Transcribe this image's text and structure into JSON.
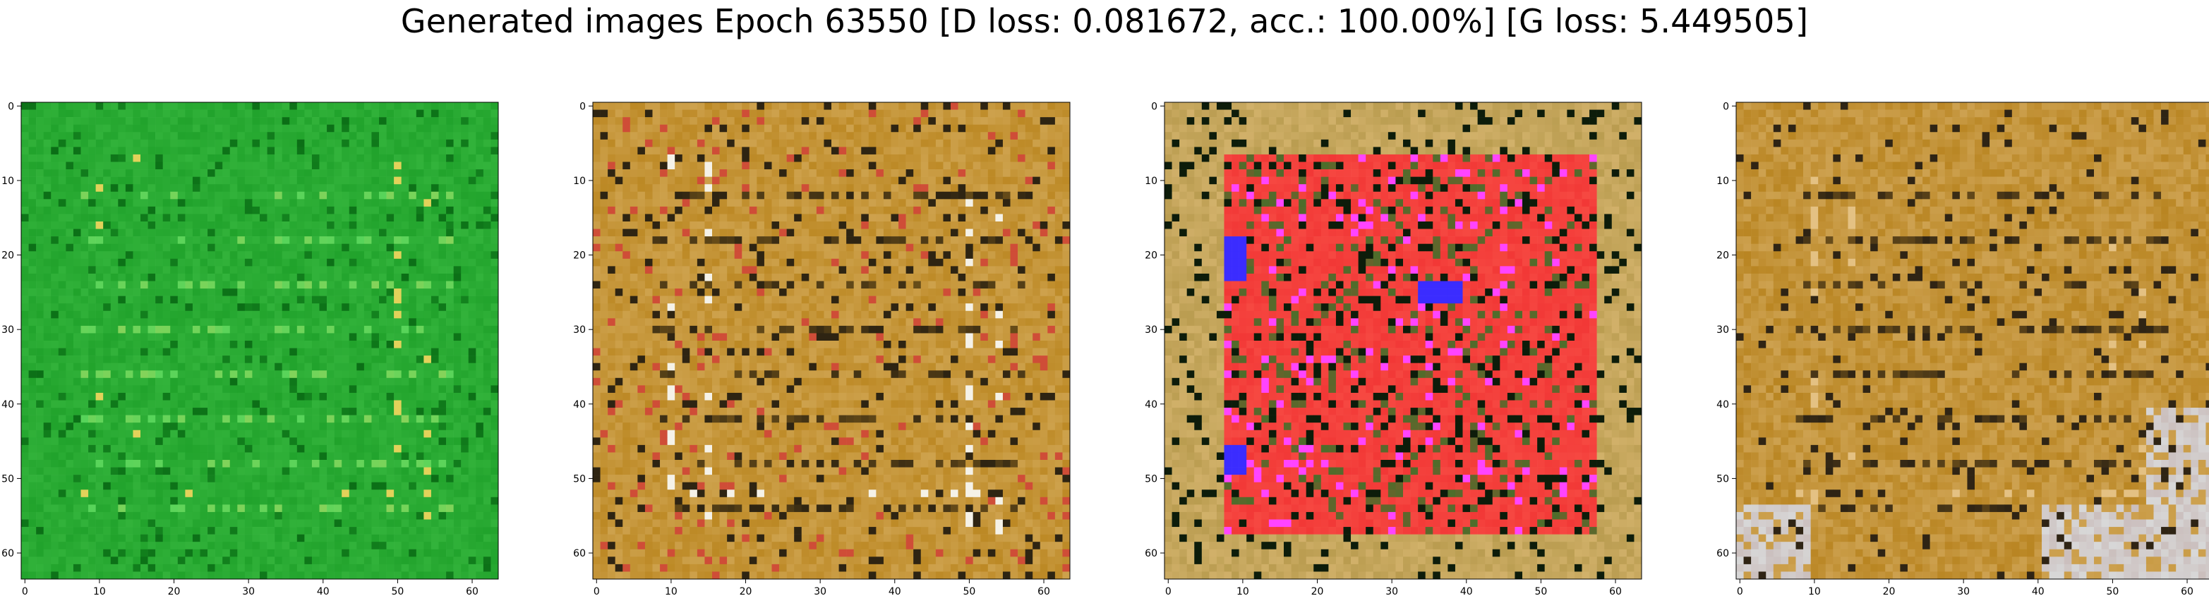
{
  "figure": {
    "title": "Generated images Epoch 63550 [D loss: 0.081672, acc.: 100.00%] [G loss: 5.449505]"
  },
  "axes_ticks": {
    "x": [
      "0",
      "10",
      "20",
      "30",
      "40",
      "50",
      "60"
    ],
    "y": [
      "0",
      "10",
      "20",
      "30",
      "40",
      "50",
      "60"
    ]
  },
  "panels": [
    {
      "id": "panel-1",
      "colors": {
        "base": "#1fa12a",
        "dark": "#0b6e16",
        "light": "#56d45a",
        "accent": "#e2d25a",
        "spot": "#f0a22b"
      }
    },
    {
      "id": "panel-2",
      "colors": {
        "base": "#bb8722",
        "dark": "#2e2412",
        "light": "#e3c07d",
        "accent": "#f5f2e8",
        "spot": "#cf4d37"
      }
    },
    {
      "id": "panel-3",
      "colors": {
        "base": "#f03131",
        "dark": "#0d1c0a",
        "light": "#b79a4d",
        "accent": "#3b2cff",
        "spot": "#ff44ff"
      }
    },
    {
      "id": "panel-4",
      "colors": {
        "base": "#b98522",
        "dark": "#2f2414",
        "light": "#e4c183",
        "accent": "#d8d8d8",
        "spot": "#c6b6b4"
      }
    }
  ]
}
